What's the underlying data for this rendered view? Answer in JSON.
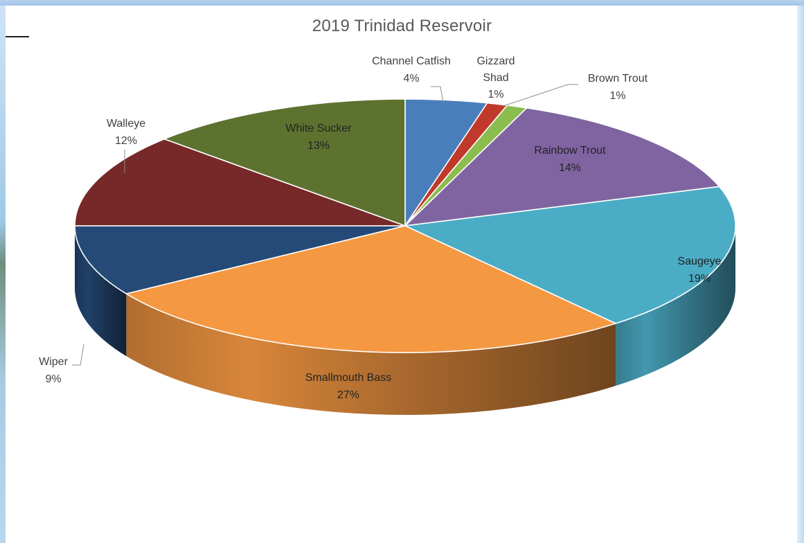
{
  "chart_data": {
    "type": "pie",
    "title": "2019 Trinidad Reservoir",
    "show_labels": true,
    "slices": [
      {
        "name": "Channel Catfish",
        "value": 4,
        "label": "4%",
        "color": "#4a7ebb"
      },
      {
        "name": "Gizzard Shad",
        "value": 1,
        "label": "1%",
        "color": "#c0392b"
      },
      {
        "name": "Brown Trout",
        "value": 1,
        "label": "1%",
        "color": "#8bbd4e"
      },
      {
        "name": "Rainbow Trout",
        "value": 14,
        "label": "14%",
        "color": "#8064a2"
      },
      {
        "name": "Saugeye",
        "value": 19,
        "label": "19%",
        "color": "#4bacc6"
      },
      {
        "name": "Smallmouth Bass",
        "value": 27,
        "label": "27%",
        "color": "#f59842"
      },
      {
        "name": "Wiper",
        "value": 9,
        "label": "9%",
        "color": "#254a77"
      },
      {
        "name": "Walleye",
        "value": 12,
        "label": "12%",
        "color": "#772828"
      },
      {
        "name": "White Sucker",
        "value": 13,
        "label": "13%",
        "color": "#5e7230"
      }
    ]
  }
}
